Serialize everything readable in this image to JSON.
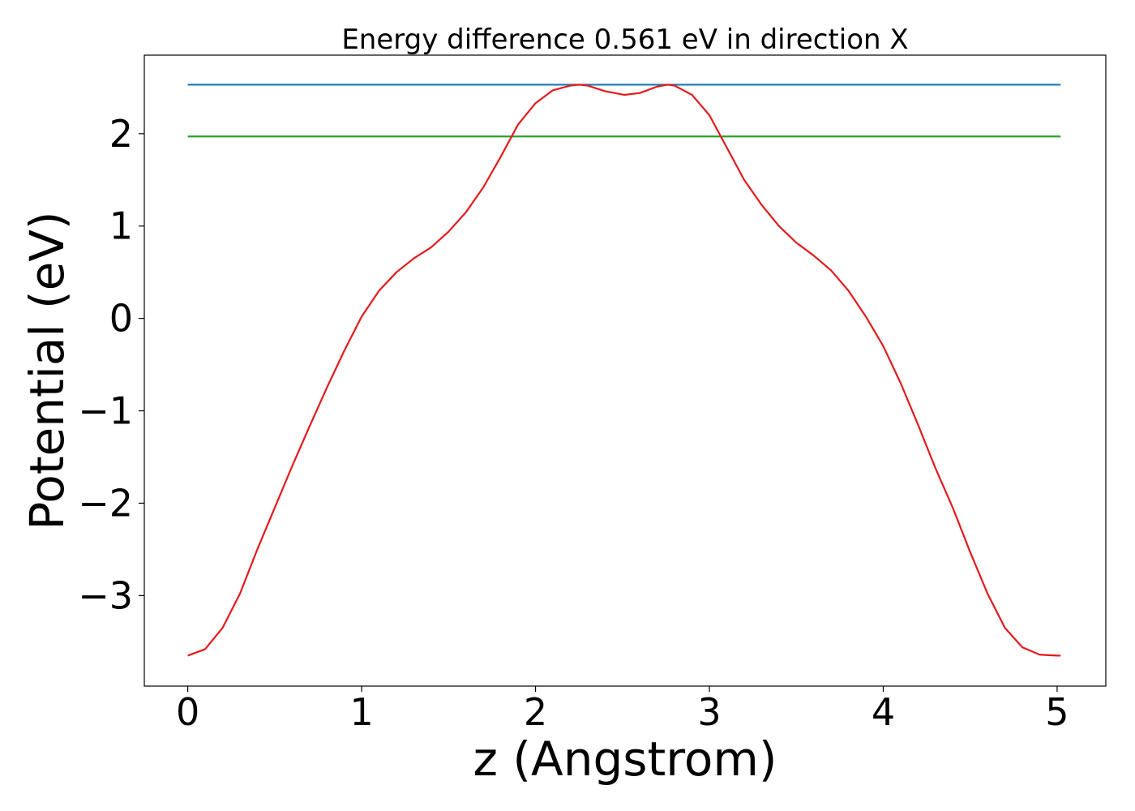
{
  "chart_data": {
    "type": "line",
    "title": "Energy difference 0.561 eV in direction X",
    "xlabel": "z (Angstrom)",
    "ylabel": "Potential (eV)",
    "xlim": [
      -0.25,
      5.28
    ],
    "ylim": [
      -3.98,
      2.85
    ],
    "xticks": [
      0,
      1,
      2,
      3,
      4,
      5
    ],
    "xtick_labels": [
      "0",
      "1",
      "2",
      "3",
      "4",
      "5"
    ],
    "yticks": [
      -3,
      -2,
      -1,
      0,
      1,
      2
    ],
    "ytick_labels": [
      "−3",
      "−2",
      "−1",
      "0",
      "1",
      "2"
    ],
    "grid": false,
    "legend": "none",
    "series": [
      {
        "color": "#1f77b4",
        "x": [
          0,
          5.02
        ],
        "y": [
          2.53,
          2.53
        ]
      },
      {
        "color": "#2ca02c",
        "x": [
          0,
          5.02
        ],
        "y": [
          1.97,
          1.97
        ]
      },
      {
        "color": "#e31a1c",
        "x": [
          0,
          0.1,
          0.2,
          0.3,
          0.4,
          0.5,
          0.6,
          0.7,
          0.8,
          0.9,
          1.0,
          1.1,
          1.2,
          1.3,
          1.4,
          1.5,
          1.6,
          1.7,
          1.8,
          1.9,
          2.0,
          2.1,
          2.2,
          2.25,
          2.3,
          2.4,
          2.51,
          2.6,
          2.7,
          2.76,
          2.8,
          2.9,
          3.0,
          3.1,
          3.2,
          3.3,
          3.4,
          3.5,
          3.6,
          3.7,
          3.8,
          3.9,
          4.0,
          4.1,
          4.2,
          4.3,
          4.4,
          4.5,
          4.6,
          4.7,
          4.8,
          4.9,
          5.0,
          5.02
        ],
        "y": [
          -3.65,
          -3.58,
          -3.35,
          -2.98,
          -2.5,
          -2.05,
          -1.6,
          -1.17,
          -0.75,
          -0.35,
          0.02,
          0.3,
          0.5,
          0.65,
          0.77,
          0.94,
          1.15,
          1.42,
          1.75,
          2.1,
          2.33,
          2.47,
          2.52,
          2.53,
          2.52,
          2.46,
          2.42,
          2.44,
          2.51,
          2.53,
          2.52,
          2.42,
          2.2,
          1.85,
          1.5,
          1.23,
          1.0,
          0.82,
          0.68,
          0.52,
          0.3,
          0.02,
          -0.3,
          -0.7,
          -1.15,
          -1.62,
          -2.05,
          -2.53,
          -2.98,
          -3.35,
          -3.56,
          -3.64,
          -3.65,
          -3.65
        ]
      }
    ]
  }
}
